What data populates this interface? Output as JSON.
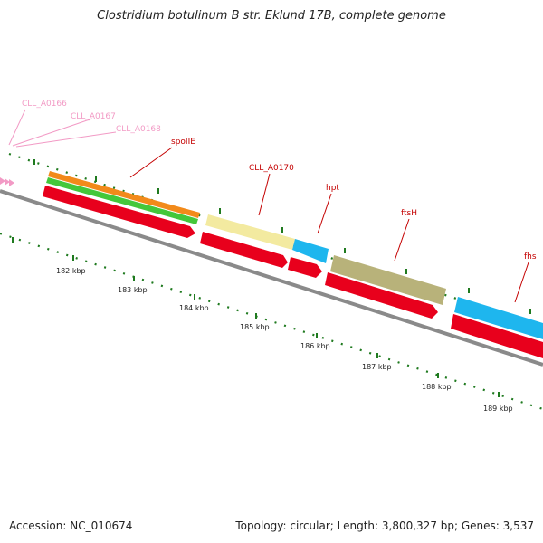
{
  "title": "Clostridium botulinum B str. Eklund 17B, complete genome",
  "accession": "Accession: NC_010674",
  "summary": "Topology: circular; Length: 3,800,327 bp; Genes: 3,537",
  "colors": {
    "backbone": "#8a8a8a",
    "ticks": "#1f7a1f",
    "cds_red": "#e8001c",
    "orange": "#f28a1a",
    "green": "#44c73a",
    "pale_yellow": "#f3eaa0",
    "cyan": "#1eb6ee",
    "olive": "#b8b27a",
    "label_pink": "#f29ac5",
    "label_red": "#c40000"
  },
  "kbp_labels": [
    "182 kbp",
    "183 kbp",
    "184 kbp",
    "185 kbp",
    "186 kbp",
    "187 kbp",
    "188 kbp",
    "189 kbp"
  ],
  "gene_labels": [
    {
      "name": "CLL_A0166",
      "color": "pink"
    },
    {
      "name": "CLL_A0167",
      "color": "pink"
    },
    {
      "name": "CLL_A0168",
      "color": "pink"
    },
    {
      "name": "spoIIE",
      "color": "red"
    },
    {
      "name": "CLL_A0170",
      "color": "red"
    },
    {
      "name": "hpt",
      "color": "red"
    },
    {
      "name": "ftsH",
      "color": "red"
    },
    {
      "name": "fhs",
      "color": "red"
    }
  ]
}
